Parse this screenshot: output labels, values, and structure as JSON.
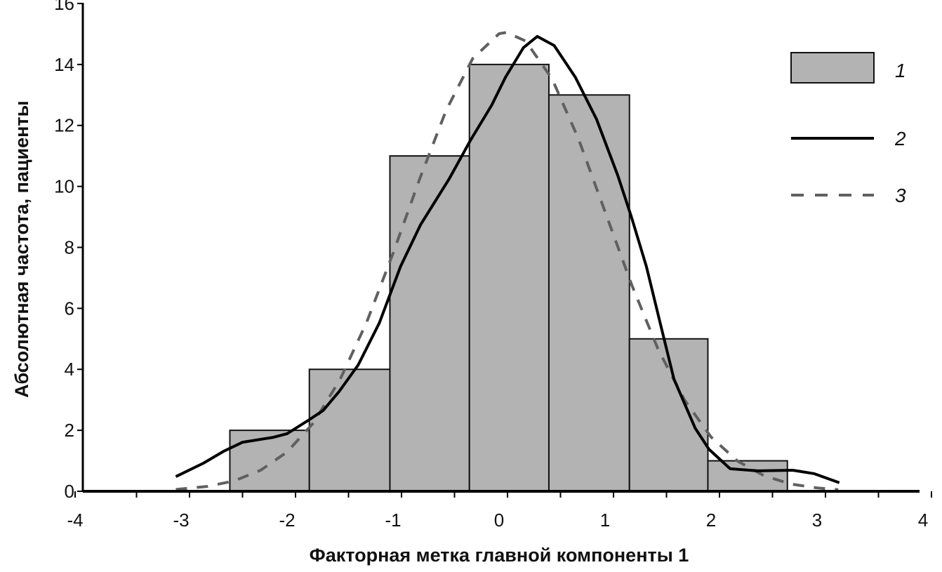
{
  "chart_data": {
    "type": "bar",
    "title": "",
    "xlabel": "Факторная метка главной компоненты 1",
    "ylabel": "Абсолютная частота, пациенты",
    "xlim": [
      -4,
      4
    ],
    "ylim": [
      0,
      16
    ],
    "xticks": [
      "-4",
      "-3",
      "-2",
      "-1",
      "0",
      "1",
      "2",
      "3",
      "4"
    ],
    "yticks": [
      "0",
      "2",
      "4",
      "6",
      "8",
      "10",
      "12",
      "14",
      "16"
    ],
    "grid": false,
    "legend_position": "top-right",
    "colors": {
      "bar": "#b3b3b3",
      "kde": "#000000",
      "normal": "#606060"
    },
    "series": [
      {
        "name": "1",
        "kind": "histogram",
        "bin_edges": [
          -2.54,
          -1.79,
          -1.03,
          -0.28,
          0.47,
          1.23,
          1.97,
          2.72
        ],
        "values": [
          2,
          4,
          11,
          14,
          13,
          5,
          1
        ]
      },
      {
        "name": "2",
        "kind": "line-solid",
        "x": [
          -3.05,
          -2.79,
          -2.6,
          -2.42,
          -2.13,
          -2.0,
          -1.79,
          -1.66,
          -1.51,
          -1.33,
          -1.13,
          -0.93,
          -0.74,
          -0.47,
          -0.27,
          -0.07,
          0.06,
          0.23,
          0.36,
          0.52,
          0.72,
          0.92,
          1.12,
          1.25,
          1.39,
          1.52,
          1.65,
          1.85,
          1.98,
          2.18,
          2.44,
          2.77,
          2.97,
          3.21
        ],
        "y": [
          0.48,
          0.92,
          1.31,
          1.61,
          1.77,
          1.89,
          2.35,
          2.65,
          3.27,
          4.14,
          5.52,
          7.37,
          8.75,
          10.25,
          11.51,
          12.66,
          13.58,
          14.55,
          14.92,
          14.62,
          13.58,
          12.2,
          10.36,
          8.98,
          7.37,
          5.52,
          3.68,
          2.07,
          1.38,
          0.74,
          0.67,
          0.69,
          0.58,
          0.28
        ]
      },
      {
        "name": "3",
        "kind": "line-dashed",
        "x": [
          -3.05,
          -2.75,
          -2.5,
          -2.25,
          -2.0,
          -1.75,
          -1.5,
          -1.25,
          -1.0,
          -0.75,
          -0.5,
          -0.25,
          0,
          0.07,
          0.25,
          0.5,
          0.75,
          1.0,
          1.25,
          1.5,
          1.75,
          2.0,
          2.25,
          2.5,
          2.75,
          3.0,
          3.2
        ],
        "y": [
          0.06,
          0.16,
          0.34,
          0.69,
          1.29,
          2.25,
          3.67,
          5.54,
          7.81,
          10.24,
          12.49,
          14.19,
          15.01,
          15.05,
          14.77,
          13.53,
          11.55,
          9.17,
          6.78,
          4.66,
          2.99,
          1.78,
          0.99,
          0.51,
          0.24,
          0.11,
          0.05
        ]
      }
    ]
  }
}
